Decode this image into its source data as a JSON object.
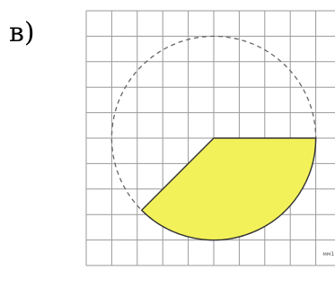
{
  "problem": {
    "label": "в)"
  },
  "figure": {
    "grid_columns": 10,
    "grid_rows": 10,
    "circle_center_cell": [
      5,
      5
    ],
    "circle_radius_cells": 4,
    "sector_start_angle_deg": 0,
    "sector_end_angle_deg": 135,
    "colors": {
      "sector_fill": "#f2f15a",
      "grid": "#9a9a9a",
      "circle_outline": "#666666",
      "sector_outline": "#333333"
    },
    "unit_label": "мм1"
  }
}
